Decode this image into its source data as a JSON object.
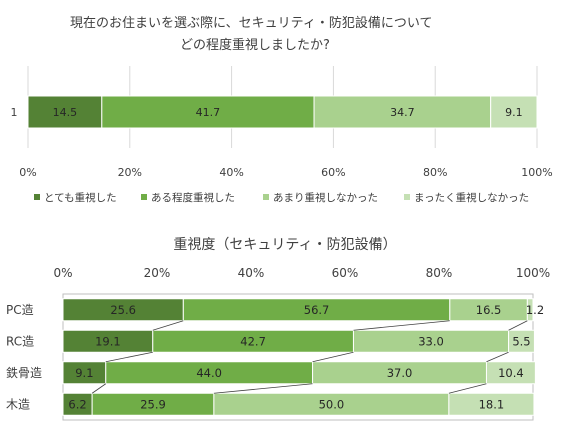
{
  "colors": {
    "s1": "#548235",
    "s2": "#70ad47",
    "s3": "#a9d18e",
    "s4": "#c5e0b4",
    "text": "#404040",
    "grid": "#d9d9d9",
    "frame": "#bfbfbf"
  },
  "chart_data": [
    {
      "type": "bar",
      "orientation": "horizontal-stacked-100",
      "title_lines": [
        "現在のお住まいを選ぶ際に、セキュリティ・防犯設備について",
        "どの程度重視しましたか?"
      ],
      "categories": [
        "1"
      ],
      "series": [
        {
          "name": "とても重視した",
          "values": [
            14.5
          ]
        },
        {
          "name": "ある程度重視した",
          "values": [
            41.7
          ]
        },
        {
          "name": "あまり重視しなかった",
          "values": [
            34.7
          ]
        },
        {
          "name": "まったく重視しなかった",
          "values": [
            9.1
          ]
        }
      ],
      "xlim": [
        0,
        100
      ],
      "xticks": [
        "0%",
        "20%",
        "40%",
        "60%",
        "80%",
        "100%"
      ],
      "legend": "bottom",
      "grid": true
    },
    {
      "type": "bar",
      "orientation": "horizontal-stacked-100",
      "title": "重視度（セキュリティ・防犯設備）",
      "categories": [
        "PC造",
        "RC造",
        "鉄骨造",
        "木造"
      ],
      "series": [
        {
          "values": [
            25.6,
            19.1,
            9.1,
            6.2
          ]
        },
        {
          "values": [
            56.7,
            42.7,
            44.0,
            25.9
          ]
        },
        {
          "values": [
            16.5,
            33.0,
            37.0,
            50.0
          ]
        },
        {
          "values": [
            1.2,
            5.5,
            10.4,
            18.1
          ]
        }
      ],
      "xlim": [
        0,
        100
      ],
      "xticks": [
        "0%",
        "20%",
        "40%",
        "60%",
        "80%",
        "100%"
      ],
      "series_lines": true,
      "legend": "none",
      "grid": false
    }
  ]
}
